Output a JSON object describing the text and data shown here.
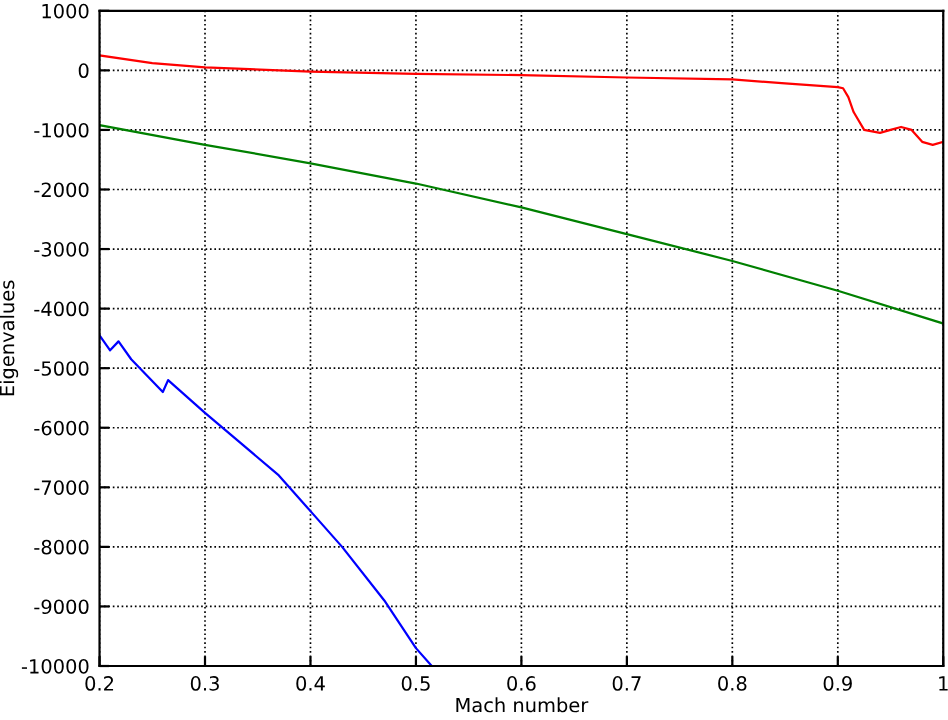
{
  "chart_data": {
    "type": "line",
    "xlabel": "Mach number",
    "ylabel": "Eigenvalues",
    "xlim": [
      0.2,
      1
    ],
    "ylim": [
      -10000,
      1000
    ],
    "xticks": [
      0.2,
      0.3,
      0.4,
      0.5,
      0.6,
      0.7,
      0.8,
      0.9,
      1
    ],
    "yticks": [
      -10000,
      -9000,
      -8000,
      -7000,
      -6000,
      -5000,
      -4000,
      -3000,
      -2000,
      -1000,
      0,
      1000
    ],
    "grid": true,
    "series": [
      {
        "color": "#ff0000",
        "x": [
          0.2,
          0.25,
          0.3,
          0.4,
          0.5,
          0.6,
          0.7,
          0.8,
          0.85,
          0.9,
          0.905,
          0.91,
          0.915,
          0.925,
          0.94,
          0.95,
          0.96,
          0.97,
          0.98,
          0.99,
          1.0
        ],
        "values": [
          250,
          120,
          50,
          -20,
          -60,
          -80,
          -120,
          -150,
          -220,
          -280,
          -300,
          -450,
          -700,
          -1000,
          -1050,
          -1000,
          -950,
          -1000,
          -1200,
          -1250,
          -1200
        ]
      },
      {
        "color": "#008000",
        "x": [
          0.2,
          0.3,
          0.4,
          0.5,
          0.6,
          0.7,
          0.8,
          0.9,
          1.0
        ],
        "values": [
          -920,
          -1250,
          -1560,
          -1900,
          -2300,
          -2750,
          -3200,
          -3700,
          -4250
        ]
      },
      {
        "color": "#0000ff",
        "x": [
          0.2,
          0.21,
          0.218,
          0.23,
          0.26,
          0.265,
          0.3,
          0.37,
          0.4,
          0.43,
          0.47,
          0.5,
          0.515
        ],
        "values": [
          -4450,
          -4700,
          -4550,
          -4850,
          -5400,
          -5200,
          -5750,
          -6800,
          -7400,
          -8000,
          -8900,
          -9700,
          -10000
        ]
      }
    ]
  }
}
